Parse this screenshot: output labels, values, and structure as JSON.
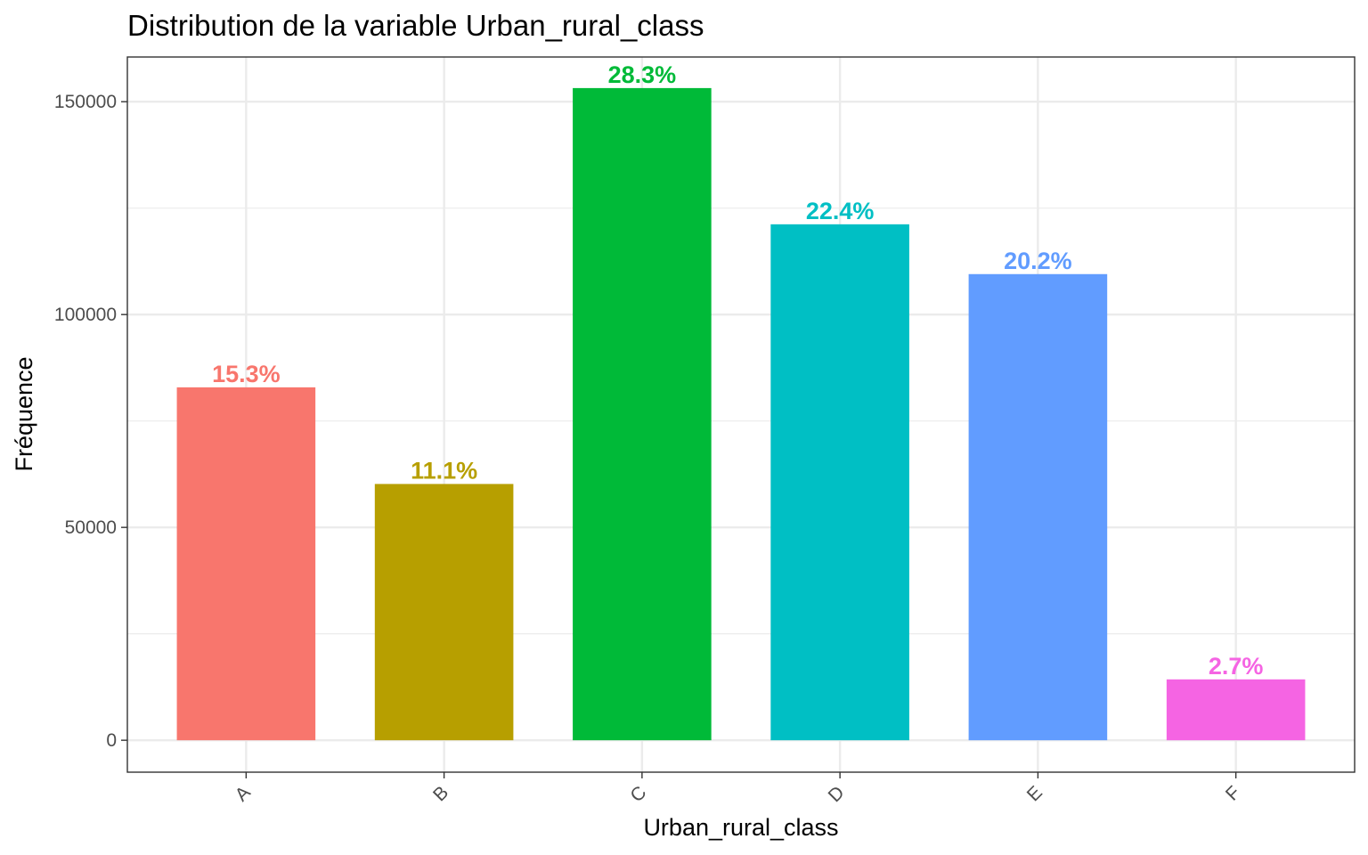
{
  "chart_data": {
    "type": "bar",
    "title": "Distribution de la variable Urban_rural_class",
    "xlabel": "Urban_rural_class",
    "ylabel": "Fréquence",
    "categories": [
      "A",
      "B",
      "C",
      "D",
      "E",
      "F"
    ],
    "values": [
      82900,
      60200,
      153200,
      121200,
      109500,
      14300
    ],
    "labels": [
      "15.3%",
      "11.1%",
      "28.3%",
      "22.4%",
      "20.2%",
      "2.7%"
    ],
    "colors": [
      "#F8766D",
      "#B79F00",
      "#00BA38",
      "#00BFC4",
      "#619CFF",
      "#F564E3"
    ],
    "ylim": [
      -7500,
      160500
    ],
    "yticks": [
      0,
      50000,
      100000,
      150000
    ],
    "ytick_labels": [
      "0",
      "50000",
      "100000",
      "150000"
    ],
    "grid": true,
    "legend": "none"
  }
}
